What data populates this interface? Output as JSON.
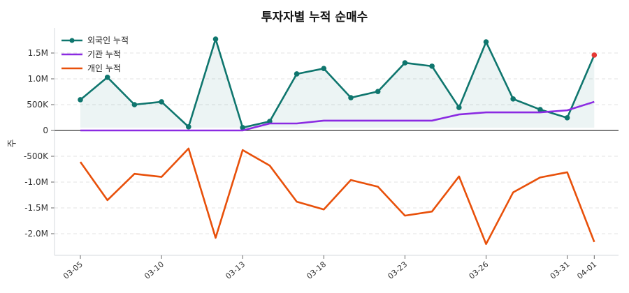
{
  "chart_data": {
    "type": "line",
    "title": "투자자별 누적 순매수",
    "xlabel": "",
    "ylabel": "주",
    "ylim": [
      -2400000,
      1950000
    ],
    "yticks": [
      {
        "v": 1500000,
        "label": "1.5M"
      },
      {
        "v": 1000000,
        "label": "1.0M"
      },
      {
        "v": 500000,
        "label": "500K"
      },
      {
        "v": 0,
        "label": "0"
      },
      {
        "v": -500000,
        "label": "-500K"
      },
      {
        "v": -1000000,
        "label": "-1.0M"
      },
      {
        "v": -1500000,
        "label": "-1.5M"
      },
      {
        "v": -2000000,
        "label": "-2.0M"
      }
    ],
    "categories": [
      "03-05",
      "",
      "",
      "03-10",
      "",
      "",
      "03-13",
      "",
      "",
      "03-18",
      "",
      "",
      "03-23",
      "",
      "",
      "03-26",
      "",
      "",
      "03-31",
      "04-01"
    ],
    "grid": "horizontal dashed",
    "legend_position": "top-left",
    "series": [
      {
        "name": "외국인 누적",
        "color": "#0f766e",
        "markers": true,
        "fill": true,
        "values": [
          595000,
          1030000,
          500000,
          555000,
          70000,
          1770000,
          55000,
          175000,
          1095000,
          1200000,
          635000,
          755000,
          1310000,
          1245000,
          445000,
          1715000,
          610000,
          405000,
          245000,
          1460000
        ]
      },
      {
        "name": "기관 누적",
        "color": "#8b2be2",
        "values": [
          0,
          0,
          0,
          0,
          0,
          0,
          0,
          135000,
          135000,
          190000,
          190000,
          190000,
          190000,
          190000,
          310000,
          350000,
          350000,
          350000,
          390000,
          555000
        ]
      },
      {
        "name": "개인 누적",
        "color": "#e8500a",
        "values": [
          -610000,
          -1350000,
          -840000,
          -900000,
          -350000,
          -2080000,
          -380000,
          -680000,
          -1380000,
          -1530000,
          -960000,
          -1090000,
          -1650000,
          -1570000,
          -890000,
          -2200000,
          -1200000,
          -910000,
          -810000,
          -2160000
        ]
      }
    ],
    "highlight": {
      "series": "외국인 누적",
      "index": 19,
      "color": "#e53935"
    }
  }
}
